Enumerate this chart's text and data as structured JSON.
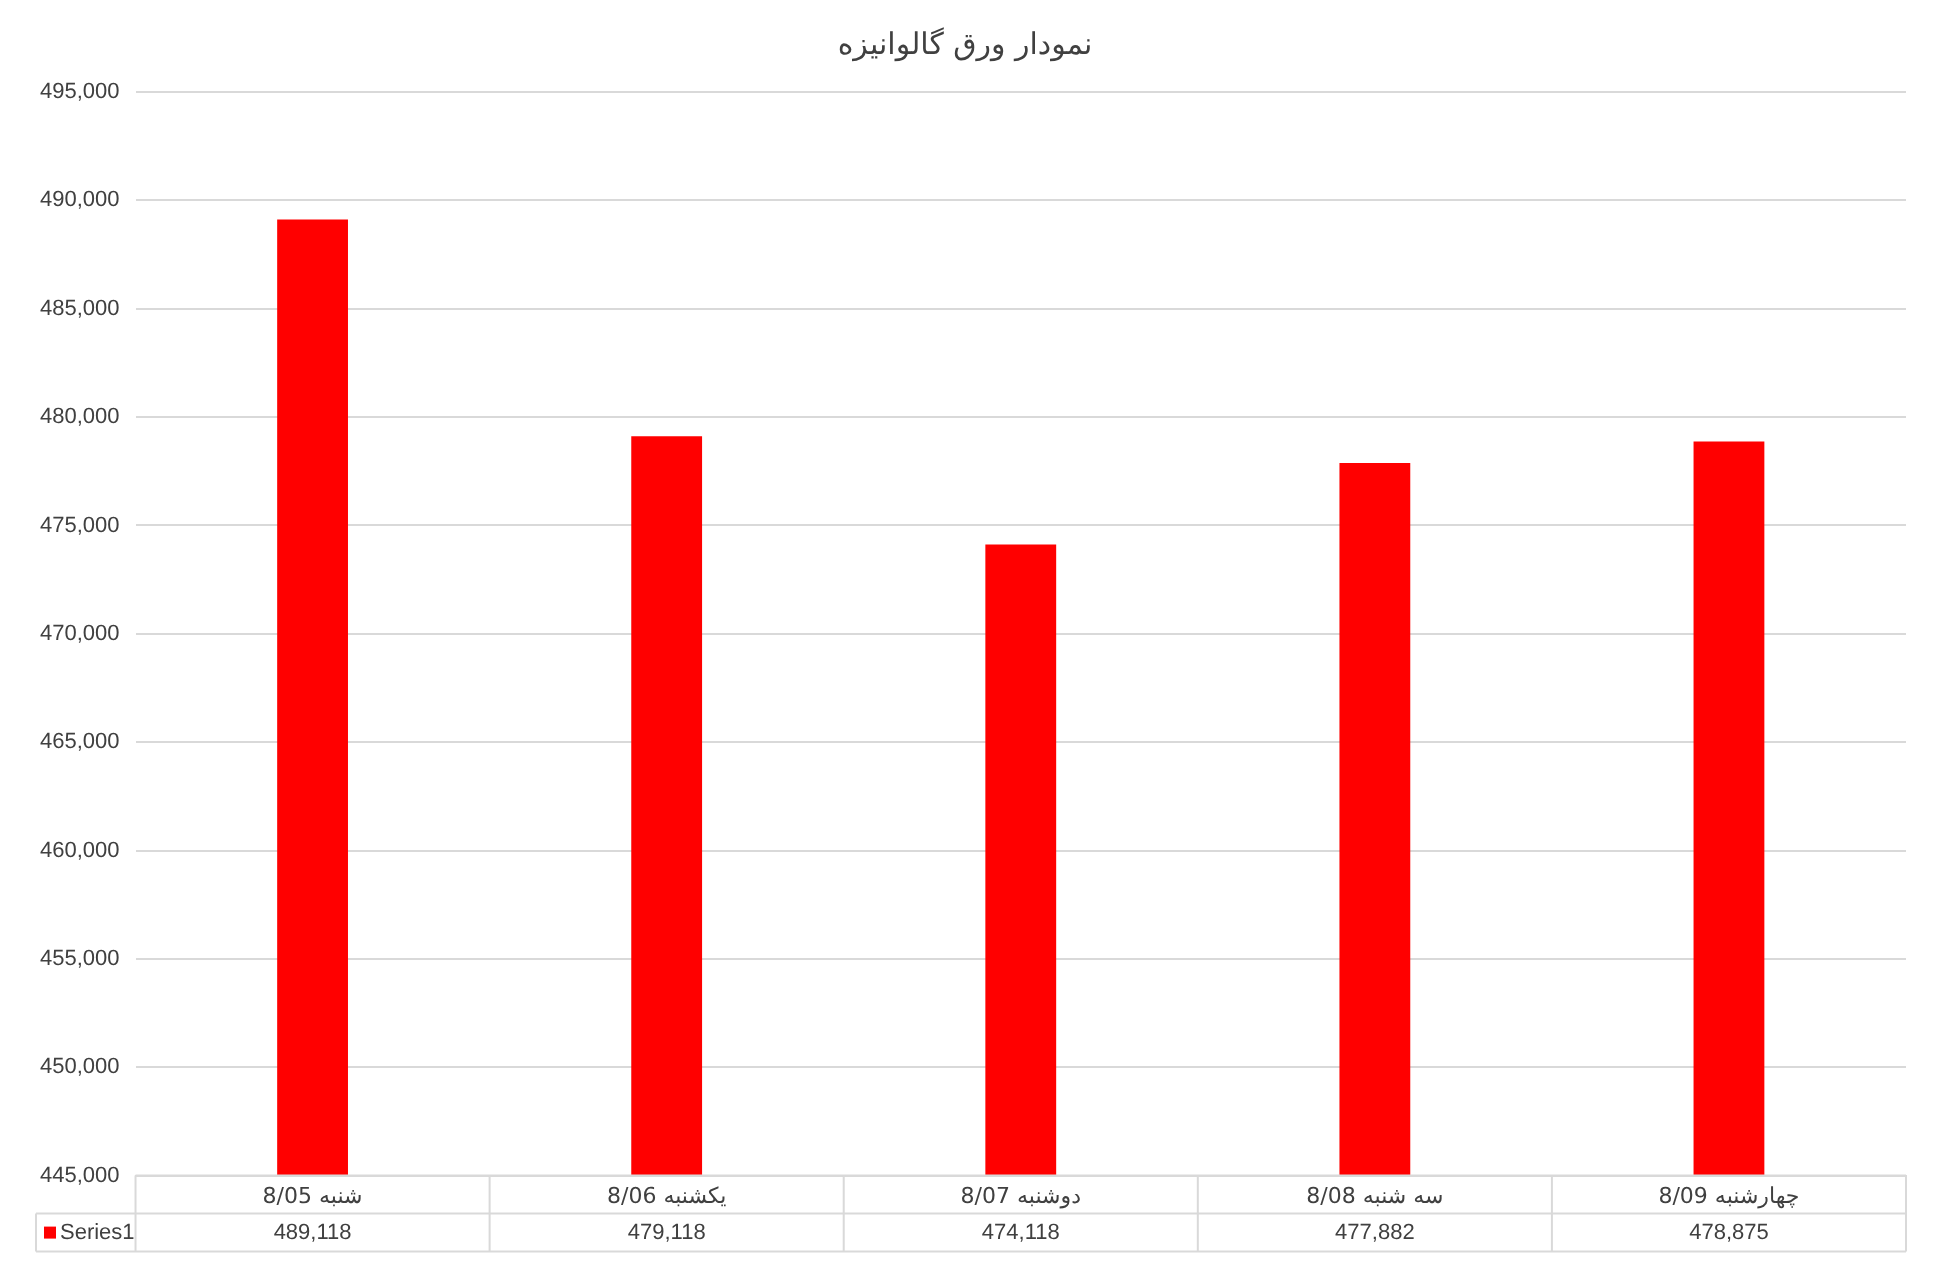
{
  "chart_data": {
    "type": "bar",
    "title": "نمودار ورق گالوانیزه",
    "categories": [
      "8/05 شنبه",
      "8/06 یکشنبه",
      "8/07 دوشنبه",
      "8/08 سه شنبه",
      "8/09 چهارشنبه"
    ],
    "series": [
      {
        "name": "Series1",
        "color": "#ff0000",
        "values": [
          489118,
          479118,
          474118,
          477882,
          478875
        ],
        "value_labels": [
          "489,118",
          "479,118",
          "474,118",
          "477,882",
          "478,875"
        ]
      }
    ],
    "ylim": [
      445000,
      495000
    ],
    "yticks": [
      {
        "value": 445000,
        "label": "445,000"
      },
      {
        "value": 450000,
        "label": "450,000"
      },
      {
        "value": 455000,
        "label": "455,000"
      },
      {
        "value": 460000,
        "label": "460,000"
      },
      {
        "value": 465000,
        "label": "465,000"
      },
      {
        "value": 470000,
        "label": "470,000"
      },
      {
        "value": 475000,
        "label": "475,000"
      },
      {
        "value": 480000,
        "label": "480,000"
      },
      {
        "value": 485000,
        "label": "485,000"
      },
      {
        "value": 490000,
        "label": "490,000"
      },
      {
        "value": 495000,
        "label": "495,000"
      }
    ],
    "grid": "y",
    "legend": "bottom"
  }
}
